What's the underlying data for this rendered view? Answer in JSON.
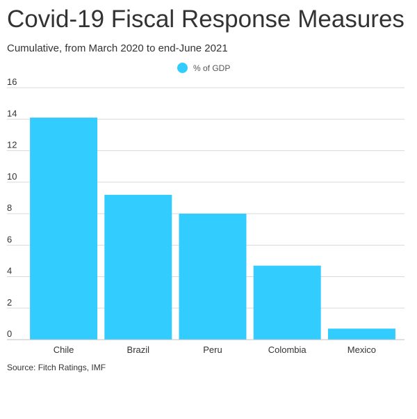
{
  "title": "Covid-19 Fiscal Response Measures",
  "subtitle": "Cumulative, from March 2020 to end-June 2021",
  "source": "Source: Fitch Ratings, IMF",
  "colors": {
    "bar": "#33ccff",
    "grid": "#d9d9d9",
    "text": "#333333"
  },
  "chart_data": {
    "type": "bar",
    "categories": [
      "Chile",
      "Brazil",
      "Peru",
      "Colombia",
      "Mexico"
    ],
    "series": [
      {
        "name": "% of GDP",
        "values": [
          14.1,
          9.2,
          8.0,
          4.7,
          0.7
        ]
      }
    ],
    "ylim": [
      0,
      16
    ],
    "yticks": [
      "0",
      "2",
      "4",
      "6",
      "8",
      "10",
      "12",
      "14",
      "16"
    ],
    "grid": true,
    "legend": "top-center"
  }
}
